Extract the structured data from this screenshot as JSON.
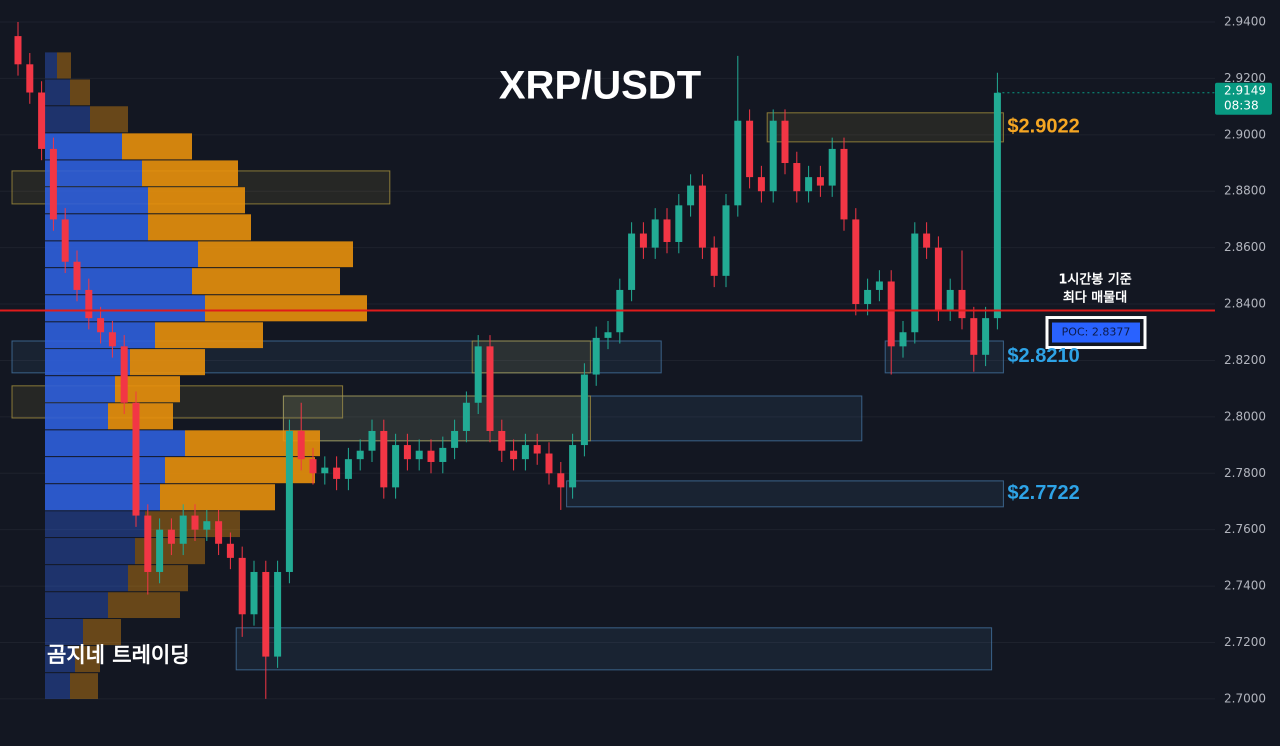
{
  "chart_data": {
    "type": "candlestick",
    "title": "XRP/USDT",
    "watermark": "곰지네 트레이딩",
    "ylim": [
      2.6833,
      2.9478
    ],
    "yticks": [
      {
        "value": 2.94,
        "label": "2.9400"
      },
      {
        "value": 2.92,
        "label": "2.9200"
      },
      {
        "value": 2.9,
        "label": "2.9000"
      },
      {
        "value": 2.88,
        "label": "2.8800"
      },
      {
        "value": 2.86,
        "label": "2.8600"
      },
      {
        "value": 2.84,
        "label": "2.8400"
      },
      {
        "value": 2.82,
        "label": "2.8200"
      },
      {
        "value": 2.8,
        "label": "2.8000"
      },
      {
        "value": 2.78,
        "label": "2.7800"
      },
      {
        "value": 2.76,
        "label": "2.7600"
      },
      {
        "value": 2.74,
        "label": "2.7400"
      },
      {
        "value": 2.72,
        "label": "2.7200"
      },
      {
        "value": 2.7,
        "label": "2.7000"
      }
    ],
    "grid": true,
    "up_color": "#22ab94",
    "down_color": "#f23645",
    "open": [
      2.935,
      2.925,
      2.915,
      2.895,
      2.87,
      2.855,
      2.845,
      2.835,
      2.83,
      2.825,
      2.805,
      2.765,
      2.745,
      2.76,
      2.755,
      2.765,
      2.76,
      2.763,
      2.755,
      2.75,
      2.73,
      2.745,
      2.715,
      2.745,
      2.795,
      2.785,
      2.78,
      2.782,
      2.778,
      2.785,
      2.788,
      2.795,
      2.775,
      2.79,
      2.785,
      2.788,
      2.784,
      2.789,
      2.795,
      2.805,
      2.825,
      2.795,
      2.788,
      2.785,
      2.79,
      2.787,
      2.78,
      2.775,
      2.79,
      2.815,
      2.828,
      2.83,
      2.845,
      2.865,
      2.86,
      2.87,
      2.862,
      2.875,
      2.882,
      2.86,
      2.85,
      2.875,
      2.905,
      2.885,
      2.88,
      2.905,
      2.89,
      2.88,
      2.885,
      2.882,
      2.895,
      2.87,
      2.84,
      2.845,
      2.848,
      2.825,
      2.83,
      2.865,
      2.86,
      2.838,
      2.845,
      2.835,
      2.822,
      2.835
    ],
    "high": [
      2.94,
      2.929,
      2.919,
      2.899,
      2.874,
      2.859,
      2.849,
      2.839,
      2.834,
      2.829,
      2.809,
      2.769,
      2.764,
      2.764,
      2.769,
      2.769,
      2.767,
      2.767,
      2.759,
      2.754,
      2.749,
      2.749,
      2.749,
      2.799,
      2.805,
      2.789,
      2.786,
      2.786,
      2.789,
      2.792,
      2.799,
      2.799,
      2.794,
      2.794,
      2.792,
      2.792,
      2.793,
      2.799,
      2.809,
      2.829,
      2.829,
      2.799,
      2.792,
      2.794,
      2.794,
      2.791,
      2.784,
      2.794,
      2.819,
      2.832,
      2.834,
      2.849,
      2.869,
      2.869,
      2.874,
      2.874,
      2.879,
      2.886,
      2.886,
      2.864,
      2.879,
      2.928,
      2.909,
      2.889,
      2.909,
      2.909,
      2.894,
      2.889,
      2.889,
      2.899,
      2.899,
      2.874,
      2.849,
      2.852,
      2.852,
      2.834,
      2.869,
      2.869,
      2.864,
      2.849,
      2.859,
      2.839,
      2.839,
      2.922
    ],
    "low": [
      2.921,
      2.911,
      2.891,
      2.866,
      2.851,
      2.841,
      2.831,
      2.826,
      2.821,
      2.801,
      2.761,
      2.737,
      2.741,
      2.751,
      2.751,
      2.756,
      2.756,
      2.751,
      2.746,
      2.722,
      2.726,
      2.7,
      2.711,
      2.741,
      2.781,
      2.776,
      2.776,
      2.774,
      2.774,
      2.781,
      2.784,
      2.771,
      2.771,
      2.781,
      2.781,
      2.78,
      2.78,
      2.785,
      2.791,
      2.801,
      2.791,
      2.784,
      2.781,
      2.781,
      2.783,
      2.776,
      2.767,
      2.771,
      2.786,
      2.811,
      2.824,
      2.826,
      2.841,
      2.856,
      2.856,
      2.858,
      2.858,
      2.871,
      2.856,
      2.846,
      2.846,
      2.871,
      2.881,
      2.876,
      2.876,
      2.886,
      2.876,
      2.876,
      2.878,
      2.878,
      2.866,
      2.836,
      2.836,
      2.841,
      2.815,
      2.821,
      2.826,
      2.856,
      2.834,
      2.834,
      2.831,
      2.816,
      2.818,
      2.831
    ],
    "close": [
      2.925,
      2.915,
      2.895,
      2.87,
      2.855,
      2.845,
      2.835,
      2.83,
      2.825,
      2.805,
      2.765,
      2.745,
      2.76,
      2.755,
      2.765,
      2.76,
      2.763,
      2.755,
      2.75,
      2.73,
      2.745,
      2.715,
      2.745,
      2.795,
      2.785,
      2.78,
      2.782,
      2.778,
      2.785,
      2.788,
      2.795,
      2.775,
      2.79,
      2.785,
      2.788,
      2.784,
      2.789,
      2.795,
      2.805,
      2.825,
      2.795,
      2.788,
      2.785,
      2.79,
      2.787,
      2.78,
      2.775,
      2.79,
      2.815,
      2.828,
      2.83,
      2.845,
      2.865,
      2.86,
      2.87,
      2.862,
      2.875,
      2.882,
      2.86,
      2.85,
      2.875,
      2.905,
      2.885,
      2.88,
      2.905,
      2.89,
      2.88,
      2.885,
      2.882,
      2.895,
      2.87,
      2.84,
      2.845,
      2.848,
      2.825,
      2.83,
      2.865,
      2.86,
      2.838,
      2.845,
      2.835,
      2.822,
      2.835,
      2.9149
    ],
    "last_price": 2.9149,
    "last_price_color": "#089981",
    "countdown": "08:38",
    "volume_profile": {
      "bins": [
        2.9294,
        2.9198,
        2.9103,
        2.9007,
        2.8911,
        2.8816,
        2.872,
        2.8624,
        2.8529,
        2.8433,
        2.8337,
        2.8242,
        2.8146,
        2.805,
        2.7954,
        2.7859,
        2.7763,
        2.7667,
        2.7572,
        2.7476,
        2.738,
        2.7285,
        2.7189,
        2.7093,
        2.6998
      ],
      "buy": [
        12,
        25,
        45,
        77,
        97,
        103,
        103,
        153,
        147,
        160,
        110,
        85,
        70,
        63,
        140,
        120,
        115,
        100,
        90,
        83,
        63,
        38,
        30,
        25
      ],
      "sell": [
        14,
        20,
        38,
        70,
        96,
        97,
        103,
        155,
        148,
        162,
        108,
        75,
        65,
        65,
        135,
        150,
        115,
        95,
        70,
        60,
        72,
        38,
        25,
        28
      ],
      "buy_color": "#2f5fdb",
      "sell_color": "#e8900c",
      "value_area": [
        2.7667,
        2.9007
      ]
    },
    "poc": {
      "value": 2.8377,
      "label": "POC: 2.8377"
    },
    "poc_color": "#e01b1b",
    "poc_note": [
      "1시간봉 기준",
      "최다 매물대"
    ],
    "zones": [
      {
        "top": 2.9078,
        "bottom": 2.8975,
        "start": 64,
        "end": 83,
        "color": "#b8a040",
        "label": "$2.9022",
        "label_color": "#f5a623"
      },
      {
        "top": 2.8872,
        "bottom": 2.8755,
        "start": 0,
        "end": 31,
        "color": "#b8a040"
      },
      {
        "top": 2.8269,
        "bottom": 2.8156,
        "start": 0,
        "end": 54,
        "color": "#4a7fb0"
      },
      {
        "top": 2.8269,
        "bottom": 2.8156,
        "start": 39,
        "end": 48,
        "color": "#b8a040"
      },
      {
        "top": 2.8269,
        "bottom": 2.8156,
        "start": 74,
        "end": 83,
        "color": "#4a7fb0",
        "label": "$2.8210",
        "label_color": "#2ea3e6"
      },
      {
        "top": 2.811,
        "bottom": 2.7996,
        "start": 0,
        "end": 27,
        "color": "#b8a040"
      },
      {
        "top": 2.8074,
        "bottom": 2.7915,
        "start": 23,
        "end": 71,
        "color": "#4a7fb0"
      },
      {
        "top": 2.8074,
        "bottom": 2.7915,
        "start": 23,
        "end": 48,
        "color": "#b8a040"
      },
      {
        "top": 2.7773,
        "bottom": 2.7681,
        "start": 47,
        "end": 83,
        "color": "#4a7fb0",
        "label": "$2.7722",
        "label_color": "#2ea3e6"
      },
      {
        "top": 2.7252,
        "bottom": 2.7103,
        "start": 19,
        "end": 82,
        "color": "#4a7fb0"
      }
    ]
  }
}
